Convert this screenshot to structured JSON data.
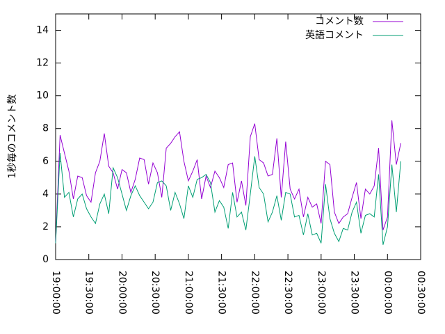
{
  "chart_data": {
    "type": "line",
    "ylabel": "1秒毎のコメント数",
    "x": [
      "19:00:00",
      "19:04:00",
      "19:08:00",
      "19:12:00",
      "19:16:00",
      "19:20:00",
      "19:24:00",
      "19:28:00",
      "19:32:00",
      "19:36:00",
      "19:40:00",
      "19:44:00",
      "19:48:00",
      "19:52:00",
      "19:56:00",
      "20:00:00",
      "20:04:00",
      "20:08:00",
      "20:12:00",
      "20:16:00",
      "20:20:00",
      "20:24:00",
      "20:28:00",
      "20:32:00",
      "20:36:00",
      "20:40:00",
      "20:44:00",
      "20:48:00",
      "20:52:00",
      "20:56:00",
      "21:00:00",
      "21:04:00",
      "21:08:00",
      "21:12:00",
      "21:16:00",
      "21:20:00",
      "21:24:00",
      "21:28:00",
      "21:32:00",
      "21:36:00",
      "21:40:00",
      "21:44:00",
      "21:48:00",
      "21:52:00",
      "21:56:00",
      "22:00:00",
      "22:04:00",
      "22:08:00",
      "22:12:00",
      "22:16:00",
      "22:20:00",
      "22:24:00",
      "22:28:00",
      "22:32:00",
      "22:36:00",
      "22:40:00",
      "22:44:00",
      "22:48:00",
      "22:52:00",
      "22:56:00",
      "23:00:00",
      "23:04:00",
      "23:08:00",
      "23:12:00",
      "23:16:00",
      "23:20:00",
      "23:24:00",
      "23:28:00",
      "23:32:00",
      "23:36:00",
      "23:40:00",
      "23:44:00",
      "23:48:00",
      "23:52:00",
      "23:56:00",
      "00:00:00",
      "00:04:00",
      "00:08:00",
      "00:12:00"
    ],
    "series": [
      {
        "name": "コメント数",
        "color": "#9400d3",
        "values": [
          1.0,
          7.6,
          6.5,
          5.4,
          3.7,
          5.1,
          5.0,
          3.9,
          3.5,
          5.3,
          6.0,
          7.7,
          5.7,
          5.3,
          4.3,
          5.5,
          5.3,
          4.1,
          4.9,
          6.2,
          6.1,
          4.6,
          5.9,
          5.3,
          3.8,
          6.8,
          7.1,
          7.5,
          7.8,
          6.0,
          4.8,
          5.4,
          6.1,
          3.7,
          5.1,
          4.4,
          5.4,
          5.0,
          4.4,
          5.8,
          5.9,
          3.5,
          4.8,
          3.3,
          7.5,
          8.3,
          6.1,
          5.9,
          5.1,
          5.2,
          7.4,
          3.8,
          7.2,
          4.3,
          3.7,
          4.3,
          2.6,
          3.8,
          3.2,
          3.4,
          2.2,
          6.0,
          5.8,
          2.9,
          2.2,
          2.6,
          2.8,
          3.8,
          4.7,
          2.5,
          4.3,
          4.0,
          4.5,
          6.8,
          1.8,
          2.6,
          8.5,
          5.8,
          7.1
        ]
      },
      {
        "name": "英語コメント",
        "color": "#009e73",
        "values": [
          1.0,
          6.5,
          3.8,
          4.1,
          2.6,
          3.7,
          4.0,
          3.1,
          2.6,
          2.2,
          3.4,
          4.0,
          2.8,
          5.6,
          5.0,
          4.0,
          3.0,
          3.9,
          4.5,
          3.9,
          3.5,
          3.1,
          3.5,
          4.7,
          4.8,
          4.5,
          3.0,
          4.1,
          3.4,
          2.5,
          4.5,
          3.8,
          4.9,
          5.0,
          5.2,
          4.7,
          2.9,
          3.6,
          3.2,
          1.9,
          4.1,
          2.6,
          2.9,
          1.8,
          4.0,
          6.3,
          4.4,
          4.0,
          2.3,
          2.9,
          3.9,
          2.4,
          4.1,
          4.0,
          2.6,
          2.7,
          1.5,
          2.8,
          1.5,
          1.6,
          1.0,
          4.6,
          2.5,
          1.6,
          1.1,
          1.9,
          1.8,
          2.9,
          3.5,
          1.6,
          2.7,
          2.8,
          2.6,
          5.2,
          0.9,
          2.0,
          5.8,
          2.9,
          6.0
        ]
      }
    ],
    "xlim": [
      "19:00:00",
      "00:30:00"
    ],
    "xticks": [
      "19:00:00",
      "19:30:00",
      "20:00:00",
      "20:30:00",
      "21:00:00",
      "21:30:00",
      "22:00:00",
      "22:30:00",
      "23:00:00",
      "23:30:00",
      "00:00:00",
      "00:30:00"
    ],
    "ylim": [
      0,
      15
    ],
    "yticks": [
      0,
      2,
      4,
      6,
      8,
      10,
      12,
      14
    ],
    "legend": "top-right"
  }
}
